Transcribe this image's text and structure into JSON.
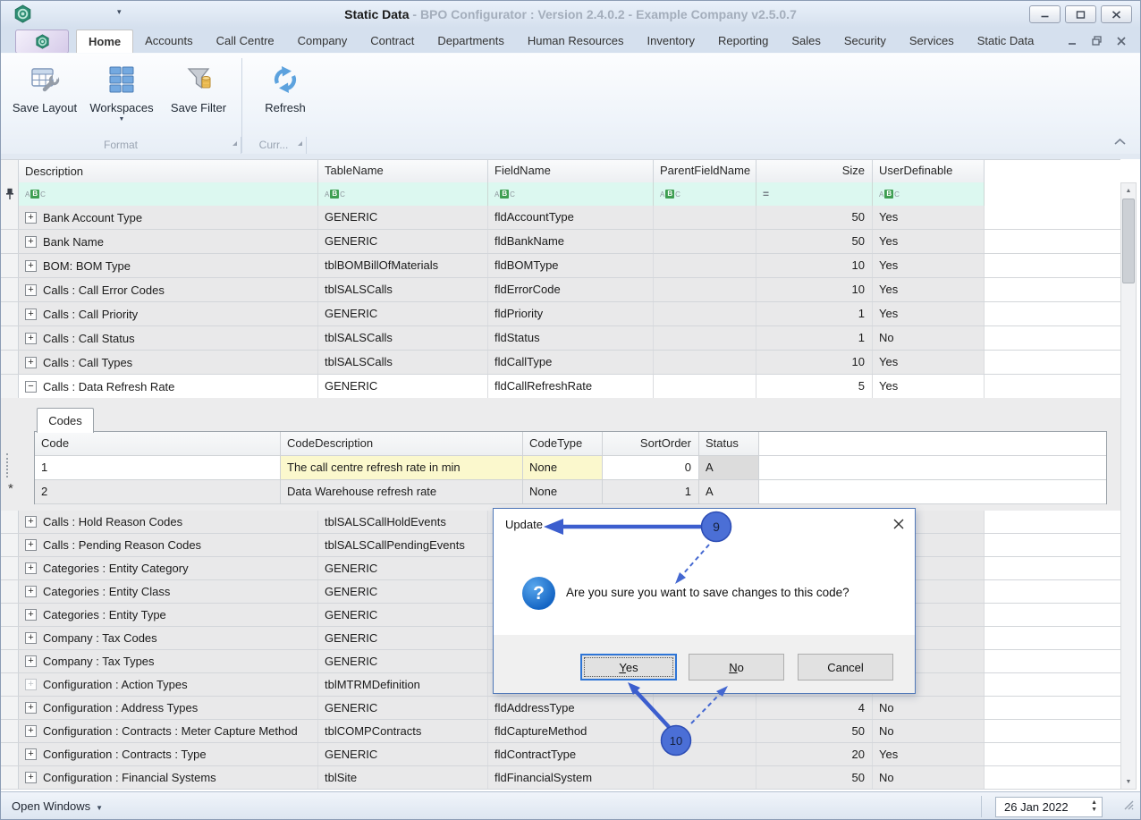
{
  "titlebar": {
    "app_icon": "hexagon-gear-icon",
    "title_primary": "Static Data",
    "title_secondary": " - BPO Configurator : Version 2.4.0.2 - Example Company v2.5.0.7",
    "window_buttons": [
      {
        "name": "minimize-button",
        "icon": "minimize-icon"
      },
      {
        "name": "maximize-button",
        "icon": "maximize-icon"
      },
      {
        "name": "close-button",
        "icon": "close-icon"
      }
    ]
  },
  "ribbon": {
    "tabs": [
      {
        "label": "Home",
        "selected": true
      },
      {
        "label": "Accounts"
      },
      {
        "label": "Call Centre"
      },
      {
        "label": "Company"
      },
      {
        "label": "Contract"
      },
      {
        "label": "Departments"
      },
      {
        "label": "Human Resources"
      },
      {
        "label": "Inventory"
      },
      {
        "label": "Reporting"
      },
      {
        "label": "Sales"
      },
      {
        "label": "Security"
      },
      {
        "label": "Services"
      },
      {
        "label": "Static Data"
      }
    ],
    "buttons": [
      {
        "label": "Save Layout",
        "icon": "save-layout-icon"
      },
      {
        "label": "Workspaces",
        "icon": "workspaces-icon",
        "has_dropdown": true
      },
      {
        "label": "Save Filter",
        "icon": "save-filter-icon"
      },
      {
        "label": "Refresh",
        "icon": "refresh-icon",
        "group_start": true
      }
    ],
    "groups": [
      {
        "label": "Format"
      },
      {
        "label": "Curr..."
      }
    ]
  },
  "grid": {
    "columns": [
      "Description",
      "TableName",
      "FieldName",
      "ParentFieldName",
      "Size",
      "UserDefinable"
    ],
    "filter_row": {
      "types": [
        "text",
        "text",
        "text",
        "text",
        "equals",
        "text"
      ]
    },
    "rows_top": [
      {
        "description": "Bank Account Type",
        "table": "GENERIC",
        "field": "fldAccountType",
        "parent": "",
        "size": "50",
        "user": "Yes"
      },
      {
        "description": "Bank Name",
        "table": "GENERIC",
        "field": "fldBankName",
        "parent": "",
        "size": "50",
        "user": "Yes"
      },
      {
        "description": "BOM: BOM Type",
        "table": "tblBOMBillOfMaterials",
        "field": "fldBOMType",
        "parent": "",
        "size": "10",
        "user": "Yes"
      },
      {
        "description": "Calls : Call Error Codes",
        "table": "tblSALSCalls",
        "field": "fldErrorCode",
        "parent": "",
        "size": "10",
        "user": "Yes"
      },
      {
        "description": "Calls : Call Priority",
        "table": "GENERIC",
        "field": "fldPriority",
        "parent": "",
        "size": "1",
        "user": "Yes"
      },
      {
        "description": "Calls : Call Status",
        "table": "tblSALSCalls",
        "field": "fldStatus",
        "parent": "",
        "size": "1",
        "user": "No"
      },
      {
        "description": "Calls : Call Types",
        "table": "tblSALSCalls",
        "field": "fldCallType",
        "parent": "",
        "size": "10",
        "user": "Yes"
      },
      {
        "description": "Calls : Data Refresh Rate",
        "table": "GENERIC",
        "field": "fldCallRefreshRate",
        "parent": "",
        "size": "5",
        "user": "Yes",
        "expanded": true
      }
    ],
    "rows_bottom": [
      {
        "description": "Calls : Hold Reason Codes",
        "table": "tblSALSCallHoldEvents",
        "field": "",
        "parent": "",
        "size": "",
        "user": ""
      },
      {
        "description": "Calls : Pending Reason Codes",
        "table": "tblSALSCallPendingEvents",
        "field": "",
        "parent": "",
        "size": "",
        "user": ""
      },
      {
        "description": "Categories : Entity Category",
        "table": "GENERIC",
        "field": "",
        "parent": "",
        "size": "",
        "user": ""
      },
      {
        "description": "Categories : Entity Class",
        "table": "GENERIC",
        "field": "",
        "parent": "",
        "size": "",
        "user": ""
      },
      {
        "description": "Categories : Entity Type",
        "table": "GENERIC",
        "field": "",
        "parent": "",
        "size": "",
        "user": ""
      },
      {
        "description": "Company : Tax Codes",
        "table": "GENERIC",
        "field": "",
        "parent": "",
        "size": "",
        "user": ""
      },
      {
        "description": "Company : Tax Types",
        "table": "GENERIC",
        "field": "",
        "parent": "",
        "size": "",
        "user": ""
      },
      {
        "description": "Configuration : Action Types",
        "table": "tblMTRMDefinition",
        "field": "",
        "parent": "",
        "size": "",
        "user": "",
        "disabled": true
      },
      {
        "description": "Configuration : Address Types",
        "table": "GENERIC",
        "field": "fldAddressType",
        "parent": "",
        "size": "4",
        "user": "No"
      },
      {
        "description": "Configuration : Contracts : Meter Capture Method",
        "table": "tblCOMPContracts",
        "field": "fldCaptureMethod",
        "parent": "",
        "size": "50",
        "user": "No"
      },
      {
        "description": "Configuration : Contracts : Type",
        "table": "GENERIC",
        "field": "fldContractType",
        "parent": "",
        "size": "20",
        "user": "Yes"
      },
      {
        "description": "Configuration : Financial Systems",
        "table": "tblSite",
        "field": "fldFinancialSystem",
        "parent": "",
        "size": "50",
        "user": "No"
      }
    ]
  },
  "detail": {
    "tab_label": "Codes",
    "columns": [
      "Code",
      "CodeDescription",
      "CodeType",
      "SortOrder",
      "Status"
    ],
    "rows": [
      {
        "code": "1",
        "code_description": "The call centre refresh rate in min",
        "code_type": "None",
        "sort_order": "0",
        "status": "A",
        "modified": true
      },
      {
        "code": "2",
        "code_description": "Data Warehouse refresh rate",
        "code_type": "None",
        "sort_order": "1",
        "status": "A",
        "modified": false
      }
    ],
    "new_row_indicator": "*"
  },
  "dialog": {
    "title": "Update",
    "message": "Are you sure you want to save changes to this code?",
    "icon": "question-icon",
    "icon_glyph": "?",
    "buttons": [
      {
        "label": "Yes",
        "accelerator": "Y",
        "focused": true
      },
      {
        "label": "No",
        "accelerator": "N"
      },
      {
        "label": "Cancel"
      }
    ]
  },
  "annotations": {
    "step9_label": "9",
    "step10_label": "10",
    "accent_color": "#4468d1"
  },
  "statusbar": {
    "open_windows_label": "Open Windows",
    "date_value": "26 Jan 2022"
  }
}
